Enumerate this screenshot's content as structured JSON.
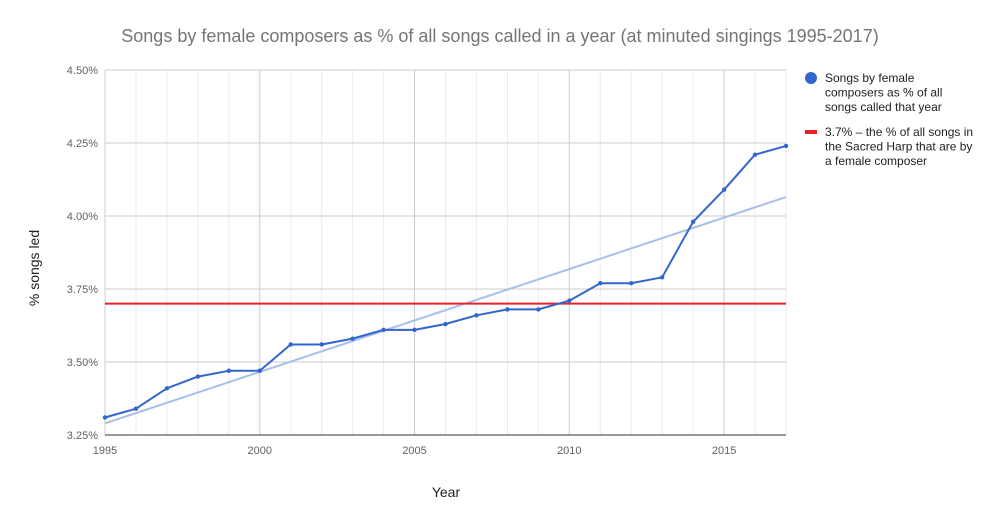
{
  "chart_data": {
    "type": "line",
    "title": "Songs by female composers as % of all songs called in a year (at minuted singings 1995-2017)",
    "xlabel": "Year",
    "ylabel": "% songs led",
    "xlim": [
      1995,
      2017
    ],
    "ylim": [
      3.25,
      4.5
    ],
    "x_ticks": [
      1995,
      2000,
      2005,
      2010,
      2015
    ],
    "x_tick_labels": [
      "1995",
      "2000",
      "2005",
      "2010",
      "2015"
    ],
    "y_ticks": [
      3.25,
      3.5,
      3.75,
      4.0,
      4.25,
      4.5
    ],
    "y_tick_labels": [
      "3.25%",
      "3.50%",
      "3.75%",
      "4.00%",
      "4.25%",
      "4.50%"
    ],
    "grid": true,
    "legend_position": "right",
    "series": [
      {
        "name": "Songs by female composers as % of all songs called that year",
        "color": "#3366cc",
        "x": [
          1995,
          1996,
          1997,
          1998,
          1999,
          2000,
          2001,
          2002,
          2003,
          2004,
          2005,
          2006,
          2007,
          2008,
          2009,
          2010,
          2011,
          2012,
          2013,
          2014,
          2015,
          2016,
          2017
        ],
        "values": [
          3.31,
          3.34,
          3.41,
          3.45,
          3.47,
          3.47,
          3.56,
          3.56,
          3.58,
          3.61,
          3.61,
          3.63,
          3.66,
          3.68,
          3.68,
          3.71,
          3.77,
          3.77,
          3.79,
          3.98,
          4.09,
          4.21,
          4.24
        ]
      }
    ],
    "reference_line": {
      "name": "3.7% – the % of all songs in the Sacred Harp that are by a female composer",
      "value": 3.7,
      "color": "#e8202a"
    },
    "trendline": {
      "color": "#a9bfea",
      "x": [
        1995,
        2017
      ],
      "values": [
        3.29,
        4.065
      ]
    }
  },
  "legend": {
    "series_lines": [
      "Songs by female",
      "composers as % of all",
      "songs called that year"
    ],
    "reference_lines": [
      "3.7% – the % of all songs in",
      "the Sacred Harp that are by",
      "a female composer"
    ]
  }
}
